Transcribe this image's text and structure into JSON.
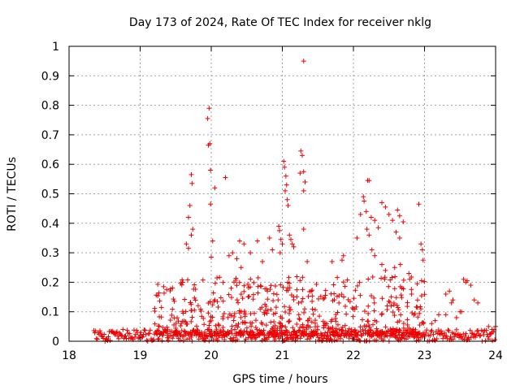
{
  "chart_data": {
    "type": "scatter",
    "title": "Day 173 of 2024, Rate Of TEC Index for receiver nklg",
    "xlabel": "GPS time / hours",
    "ylabel": "ROTI / TECUs",
    "xlim": [
      18,
      24
    ],
    "ylim": [
      0,
      1
    ],
    "xticks": [
      "18",
      "19",
      "20",
      "21",
      "22",
      "23",
      "24"
    ],
    "yticks": [
      "0",
      "0.1",
      "0.2",
      "0.3",
      "0.4",
      "0.5",
      "0.6",
      "0.7",
      "0.8",
      "0.9",
      "1"
    ],
    "grid": true,
    "marker": "+",
    "series_color": "#ee0000",
    "baseline_band": {
      "x_start": 18.35,
      "x_end": 24.0,
      "y_min": 0.0,
      "y_max": 0.04
    },
    "points": [
      [
        21.3,
        0.95
      ],
      [
        19.97,
        0.79
      ],
      [
        19.95,
        0.755
      ],
      [
        19.98,
        0.67
      ],
      [
        19.96,
        0.665
      ],
      [
        19.99,
        0.58
      ],
      [
        20.2,
        0.555
      ],
      [
        19.72,
        0.565
      ],
      [
        19.73,
        0.535
      ],
      [
        20.05,
        0.52
      ],
      [
        19.99,
        0.465
      ],
      [
        19.7,
        0.46
      ],
      [
        19.68,
        0.42
      ],
      [
        19.74,
        0.38
      ],
      [
        19.72,
        0.36
      ],
      [
        19.65,
        0.33
      ],
      [
        19.68,
        0.315
      ],
      [
        20.02,
        0.34
      ],
      [
        20.4,
        0.34
      ],
      [
        20.46,
        0.33
      ],
      [
        20.55,
        0.3
      ],
      [
        20.65,
        0.34
      ],
      [
        20.25,
        0.29
      ],
      [
        20.3,
        0.3
      ],
      [
        20.0,
        0.285
      ],
      [
        19.6,
        0.2
      ],
      [
        21.26,
        0.645
      ],
      [
        21.28,
        0.63
      ],
      [
        21.25,
        0.57
      ],
      [
        21.3,
        0.575
      ],
      [
        21.32,
        0.54
      ],
      [
        21.3,
        0.51
      ],
      [
        21.02,
        0.61
      ],
      [
        21.03,
        0.59
      ],
      [
        21.05,
        0.56
      ],
      [
        21.06,
        0.53
      ],
      [
        21.04,
        0.51
      ],
      [
        21.07,
        0.48
      ],
      [
        21.08,
        0.46
      ],
      [
        20.95,
        0.39
      ],
      [
        20.96,
        0.375
      ],
      [
        21.1,
        0.36
      ],
      [
        21.12,
        0.345
      ],
      [
        21.14,
        0.33
      ],
      [
        21.16,
        0.32
      ],
      [
        21.3,
        0.38
      ],
      [
        20.98,
        0.345
      ],
      [
        21.0,
        0.33
      ],
      [
        20.97,
        0.3
      ],
      [
        21.35,
        0.27
      ],
      [
        22.14,
        0.49
      ],
      [
        22.15,
        0.475
      ],
      [
        22.2,
        0.545
      ],
      [
        22.22,
        0.545
      ],
      [
        22.1,
        0.43
      ],
      [
        22.18,
        0.44
      ],
      [
        22.25,
        0.42
      ],
      [
        22.3,
        0.41
      ],
      [
        22.35,
        0.385
      ],
      [
        22.4,
        0.47
      ],
      [
        22.45,
        0.455
      ],
      [
        22.5,
        0.43
      ],
      [
        22.55,
        0.41
      ],
      [
        22.62,
        0.445
      ],
      [
        22.65,
        0.425
      ],
      [
        22.7,
        0.405
      ],
      [
        22.6,
        0.37
      ],
      [
        22.65,
        0.35
      ],
      [
        22.92,
        0.465
      ],
      [
        22.95,
        0.33
      ],
      [
        22.97,
        0.31
      ],
      [
        22.98,
        0.275
      ],
      [
        22.19,
        0.38
      ],
      [
        22.22,
        0.36
      ],
      [
        22.26,
        0.31
      ],
      [
        22.3,
        0.29
      ],
      [
        22.05,
        0.35
      ],
      [
        21.86,
        0.29
      ],
      [
        21.84,
        0.275
      ],
      [
        21.7,
        0.27
      ],
      [
        20.82,
        0.35
      ],
      [
        20.86,
        0.31
      ],
      [
        20.72,
        0.27
      ],
      [
        20.36,
        0.28
      ],
      [
        20.42,
        0.25
      ],
      [
        22.4,
        0.26
      ],
      [
        22.58,
        0.25
      ],
      [
        22.66,
        0.26
      ],
      [
        22.78,
        0.23
      ],
      [
        22.45,
        0.24
      ],
      [
        23.35,
        0.17
      ],
      [
        23.3,
        0.16
      ],
      [
        23.4,
        0.14
      ],
      [
        23.38,
        0.13
      ],
      [
        23.55,
        0.21
      ],
      [
        23.6,
        0.205
      ],
      [
        23.58,
        0.2
      ],
      [
        23.65,
        0.19
      ],
      [
        23.7,
        0.14
      ],
      [
        23.75,
        0.13
      ],
      [
        23.5,
        0.1
      ],
      [
        23.3,
        0.09
      ],
      [
        23.2,
        0.09
      ],
      [
        23.1,
        0.06
      ],
      [
        23.15,
        0.07
      ],
      [
        23.9,
        0.05
      ],
      [
        23.95,
        0.04
      ],
      [
        24.0,
        0.05
      ],
      [
        23.45,
        0.08
      ],
      [
        23.52,
        0.1
      ]
    ]
  }
}
